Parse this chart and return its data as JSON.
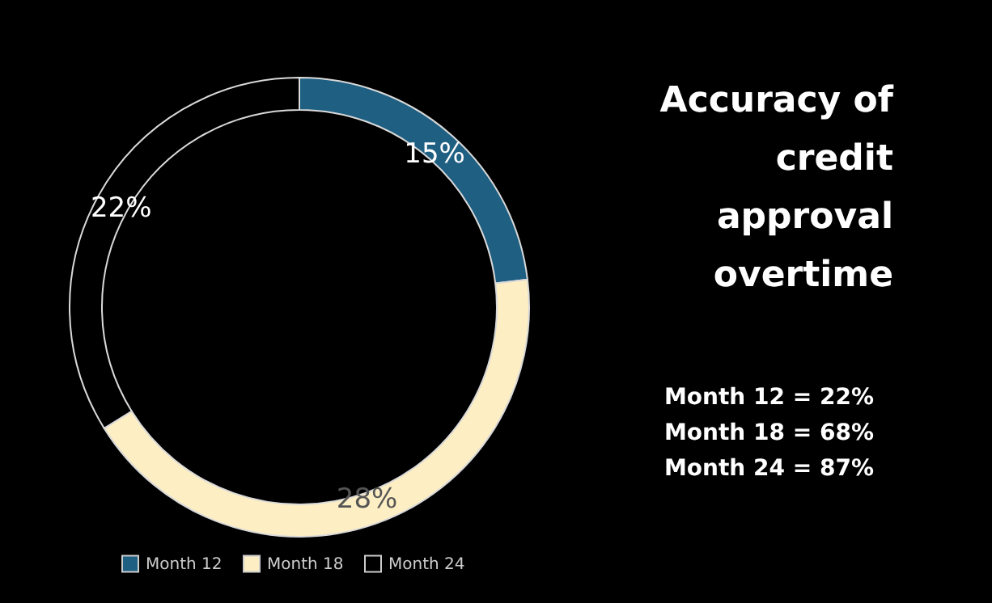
{
  "chart_data": {
    "type": "donut",
    "title": "Accuracy of credit approval overtime",
    "categories": [
      "Month 12",
      "Month 18",
      "Month 24"
    ],
    "values": [
      15,
      28,
      22
    ],
    "value_labels": [
      "15%",
      "28%",
      "22%"
    ],
    "colors": [
      "#1f5f82",
      "#fdeec3",
      "#000000"
    ],
    "legend": "bottom",
    "annotations": [
      "Month 12 = 22%",
      "Month 18 = 68%",
      "Month 24 = 87%"
    ]
  }
}
